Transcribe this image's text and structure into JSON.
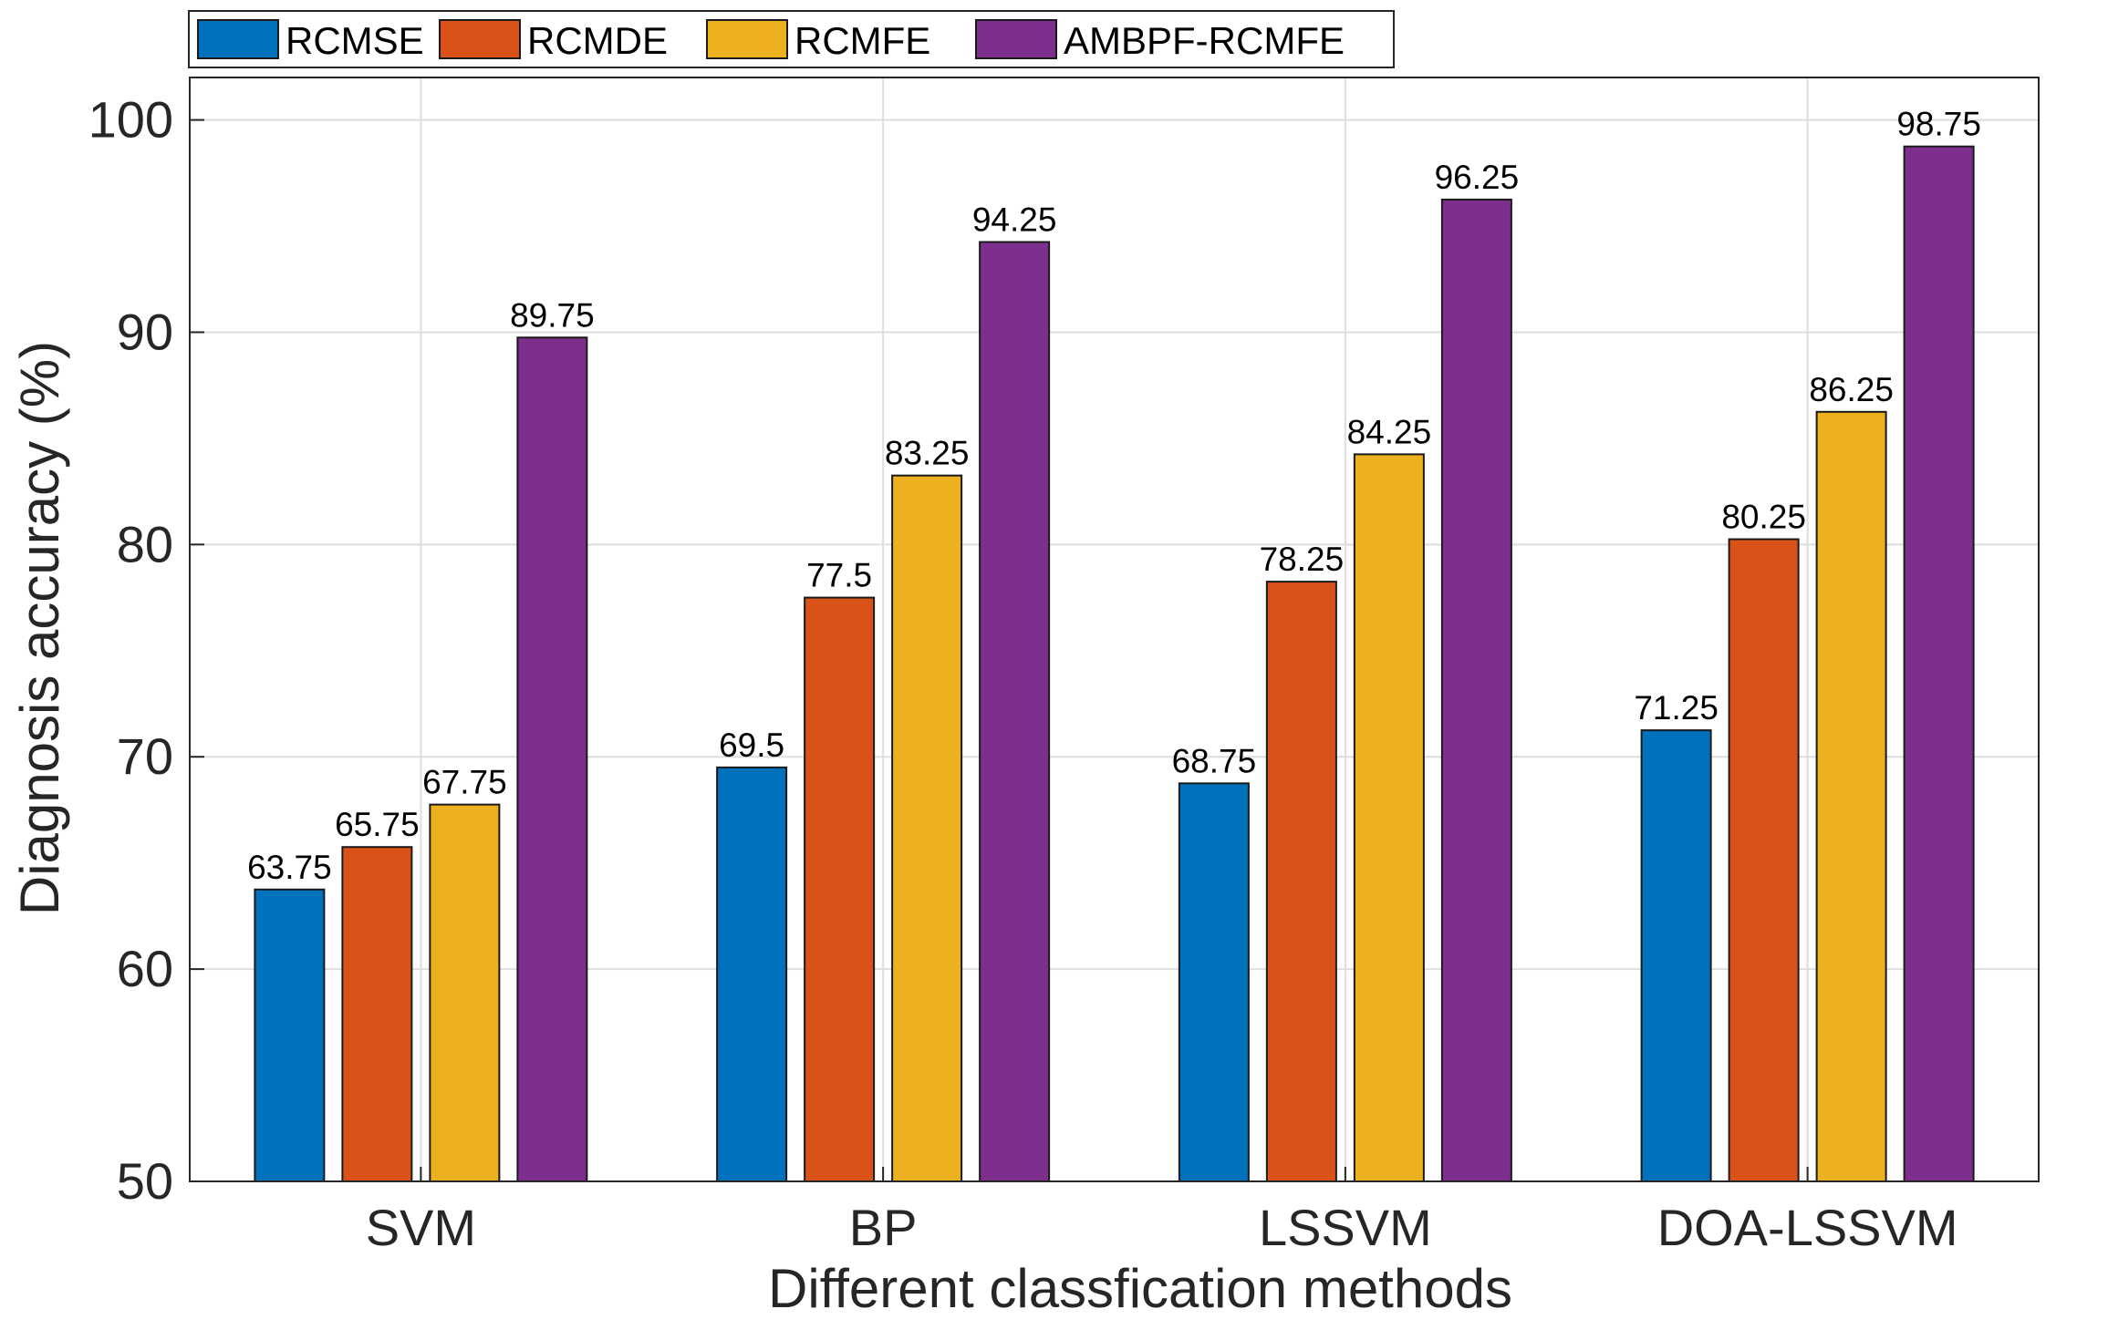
{
  "chart_data": {
    "type": "bar",
    "title": "",
    "xlabel": "Different classfication methods",
    "ylabel": "Diagnosis accuracy (%)",
    "categories": [
      "SVM",
      "BP",
      "LSSVM",
      "DOA-LSSVM"
    ],
    "ylim": [
      50,
      102
    ],
    "yticks": [
      50,
      60,
      70,
      80,
      90,
      100
    ],
    "grid": true,
    "legend_position": "top-left",
    "series": [
      {
        "name": "RCMSE",
        "color": "#0072BD",
        "values": [
          63.75,
          69.5,
          68.75,
          71.25
        ],
        "labels": [
          "63.75",
          "69.5",
          "68.75",
          "71.25"
        ]
      },
      {
        "name": "RCMDE",
        "color": "#D95319",
        "values": [
          65.75,
          77.5,
          78.25,
          80.25
        ],
        "labels": [
          "65.75",
          "77.5",
          "78.25",
          "80.25"
        ]
      },
      {
        "name": "RCMFE",
        "color": "#EDB120",
        "values": [
          67.75,
          83.25,
          84.25,
          86.25
        ],
        "labels": [
          "67.75",
          "83.25",
          "84.25",
          "86.25"
        ]
      },
      {
        "name": "AMBPF-RCMFE",
        "color": "#7E2F8E",
        "values": [
          89.75,
          94.25,
          96.25,
          98.75
        ],
        "labels": [
          "89.75",
          "94.25",
          "96.25",
          "98.75"
        ]
      }
    ]
  }
}
